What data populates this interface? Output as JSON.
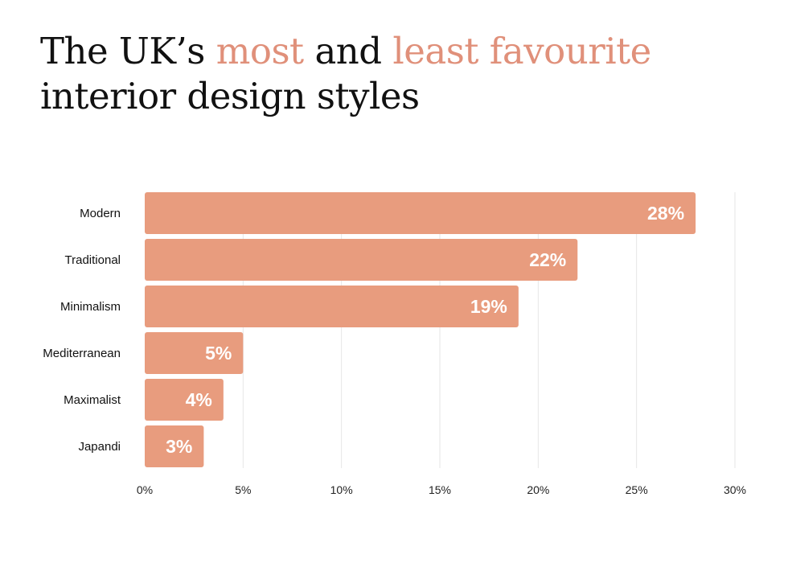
{
  "title": {
    "part1": "The UK’s ",
    "part2": "most",
    "part3": " and ",
    "part4": "least favourite",
    "part5": "interior design styles"
  },
  "colors": {
    "bar": "#E89C7E",
    "accent": "#E0907A",
    "grid": "#e6e6e6"
  },
  "chart_data": {
    "type": "bar",
    "orientation": "horizontal",
    "categories": [
      "Modern",
      "Traditional",
      "Minimalism",
      "Mediterranean",
      "Maximalist",
      "Japandi"
    ],
    "values": [
      28,
      22,
      19,
      5,
      4,
      3
    ],
    "value_labels": [
      "28%",
      "22%",
      "19%",
      "5%",
      "4%",
      "3%"
    ],
    "xlim": [
      0,
      30
    ],
    "xticks": [
      0,
      5,
      10,
      15,
      20,
      25,
      30
    ],
    "xtick_labels": [
      "0%",
      "5%",
      "10%",
      "15%",
      "20%",
      "25%",
      "30%"
    ],
    "grid": true,
    "legend": false
  }
}
